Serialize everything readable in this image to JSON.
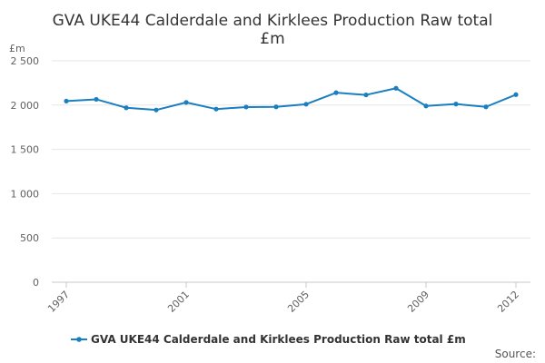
{
  "chart_data": {
    "type": "line",
    "title_line1": "GVA UKE44 Calderdale and Kirklees Production Raw total",
    "title_line2": "£m",
    "ylabel": "£m",
    "ylim": [
      0,
      2500
    ],
    "yticks": [
      0,
      500,
      1000,
      1500,
      2000,
      2500
    ],
    "ytick_labels": [
      "0",
      "500",
      "1 000",
      "1 500",
      "2 000",
      "2 500"
    ],
    "x": [
      1997,
      1998,
      1999,
      2000,
      2001,
      2002,
      2003,
      2004,
      2005,
      2006,
      2007,
      2008,
      2009,
      2010,
      2011,
      2012
    ],
    "xlim": [
      1997,
      2012
    ],
    "xticks": [
      1997,
      2001,
      2005,
      2009,
      2012
    ],
    "xtick_labels": [
      "1997",
      "2001",
      "2005",
      "2009",
      "2012"
    ],
    "grid": true,
    "legend_position": "bottom",
    "series": [
      {
        "name": "GVA UKE44 Calderdale and Kirklees Production Raw total £m",
        "color": "#1a7fc1",
        "values": [
          2045,
          2065,
          1970,
          1945,
          2030,
          1955,
          1978,
          1980,
          2010,
          2140,
          2115,
          2190,
          1990,
          2012,
          1980,
          2118
        ]
      }
    ],
    "source_label": "Source:"
  }
}
